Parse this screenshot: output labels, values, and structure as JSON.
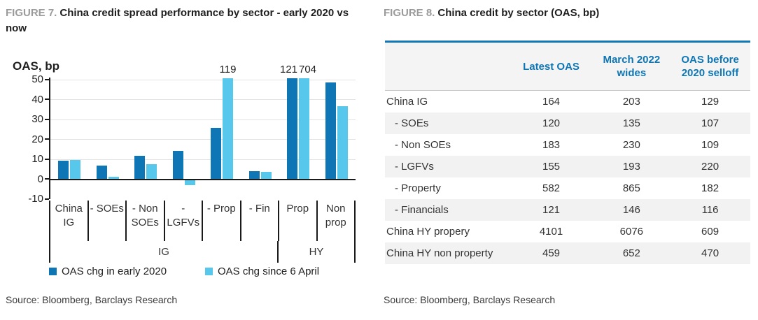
{
  "figure7": {
    "label": "FIGURE 7.",
    "title": "China credit spread performance by sector - early 2020 vs now",
    "ylabel": "OAS, bp",
    "source": "Source: Bloomberg, Barclays Research"
  },
  "figure8": {
    "label": "FIGURE 8.",
    "title": "China credit by sector (OAS, bp)",
    "source": "Source: Bloomberg, Barclays Research"
  },
  "colors": {
    "series1": "#0E76B4",
    "series2": "#58C7EC",
    "table_header_text": "#0E76B4",
    "table_top_border": "#1377B6",
    "row_alt_bg": "#F2F2F2",
    "figure_label_gray": "#9B9B9B",
    "gridline": "#E2E2E2"
  },
  "chart_data": [
    {
      "type": "bar",
      "title": "China credit spread performance by sector - early 2020 vs now",
      "ylabel": "OAS, bp",
      "ylim": [
        -10,
        50
      ],
      "yticks": [
        50,
        40,
        30,
        20,
        10,
        0,
        -10
      ],
      "grid": true,
      "legend_position": "bottom",
      "clip_note": "bars with values above 50 bp are clipped at the top of the axis and labeled with their value",
      "categories": [
        "China IG",
        "- SOEs",
        "- Non SOEs",
        "- LGFVs",
        "- Prop",
        "- Fin",
        "Prop",
        "Non prop"
      ],
      "category_groups": [
        {
          "label": "IG",
          "count": 6
        },
        {
          "label": "HY",
          "count": 2
        }
      ],
      "series": [
        {
          "name": "OAS chg in early 2020",
          "color": "#0E76B4",
          "values": [
            9.5,
            7,
            12,
            14.5,
            26,
            4.5,
            121,
            49
          ]
        },
        {
          "name": "OAS chg since 6 April",
          "color": "#58C7EC",
          "values": [
            10,
            1.5,
            8,
            -2.5,
            119,
            4,
            704,
            37
          ]
        }
      ]
    },
    {
      "type": "table",
      "title": "China credit by sector (OAS, bp)",
      "columns": [
        "",
        "Latest OAS",
        "March 2022 wides",
        "OAS before 2020 selloff"
      ],
      "rows": [
        {
          "label": "China IG",
          "indent": false,
          "values": [
            164,
            203,
            129
          ]
        },
        {
          "label": "- SOEs",
          "indent": true,
          "values": [
            120,
            135,
            107
          ]
        },
        {
          "label": "- Non SOEs",
          "indent": true,
          "values": [
            183,
            230,
            109
          ]
        },
        {
          "label": "- LGFVs",
          "indent": true,
          "values": [
            155,
            193,
            220
          ]
        },
        {
          "label": "- Property",
          "indent": true,
          "values": [
            582,
            865,
            182
          ]
        },
        {
          "label": "- Financials",
          "indent": true,
          "values": [
            121,
            146,
            116
          ]
        },
        {
          "label": "China HY propery",
          "indent": false,
          "values": [
            4101,
            6076,
            609
          ]
        },
        {
          "label": "China HY non property",
          "indent": false,
          "values": [
            459,
            652,
            470
          ]
        }
      ]
    }
  ]
}
